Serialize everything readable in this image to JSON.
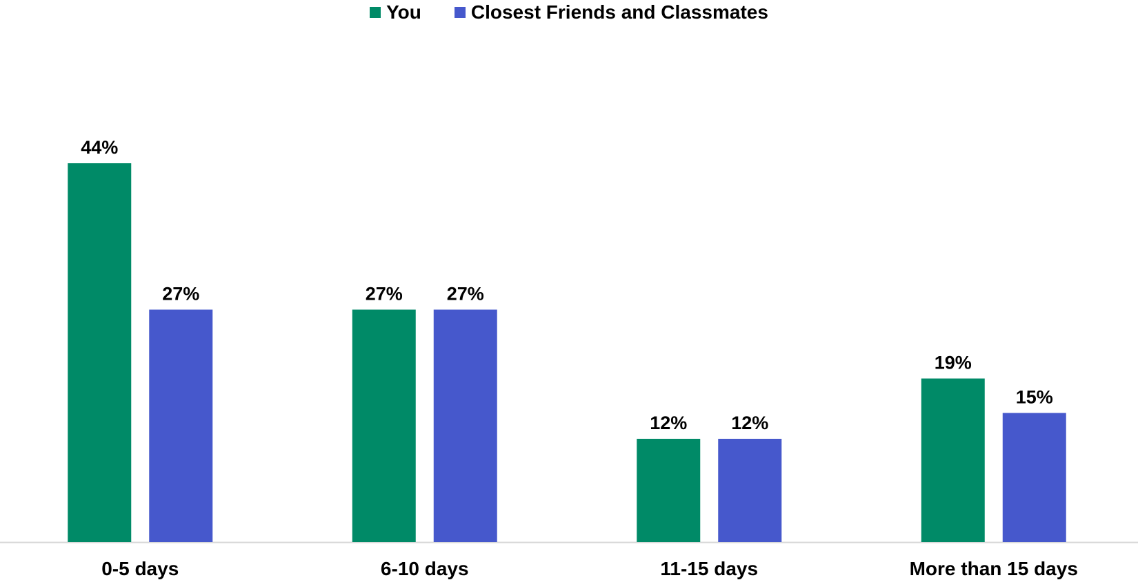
{
  "chart_data": {
    "type": "bar",
    "categories": [
      "0-5 days",
      "6-10 days",
      "11-15 days",
      "More than 15 days"
    ],
    "series": [
      {
        "name": "You",
        "values": [
          44,
          27,
          12,
          19
        ],
        "labels": [
          "44%",
          "27%",
          "12%",
          "19%"
        ],
        "color": "#008a67"
      },
      {
        "name": "Closest Friends and Classmates",
        "values": [
          27,
          27,
          12,
          15
        ],
        "labels": [
          "27%",
          "27%",
          "12%",
          "15%"
        ],
        "color": "#4658cc"
      }
    ],
    "ylim": [
      0,
      52
    ],
    "grid": false,
    "legend": "top-center",
    "axis_color": "#d9d9d9"
  }
}
